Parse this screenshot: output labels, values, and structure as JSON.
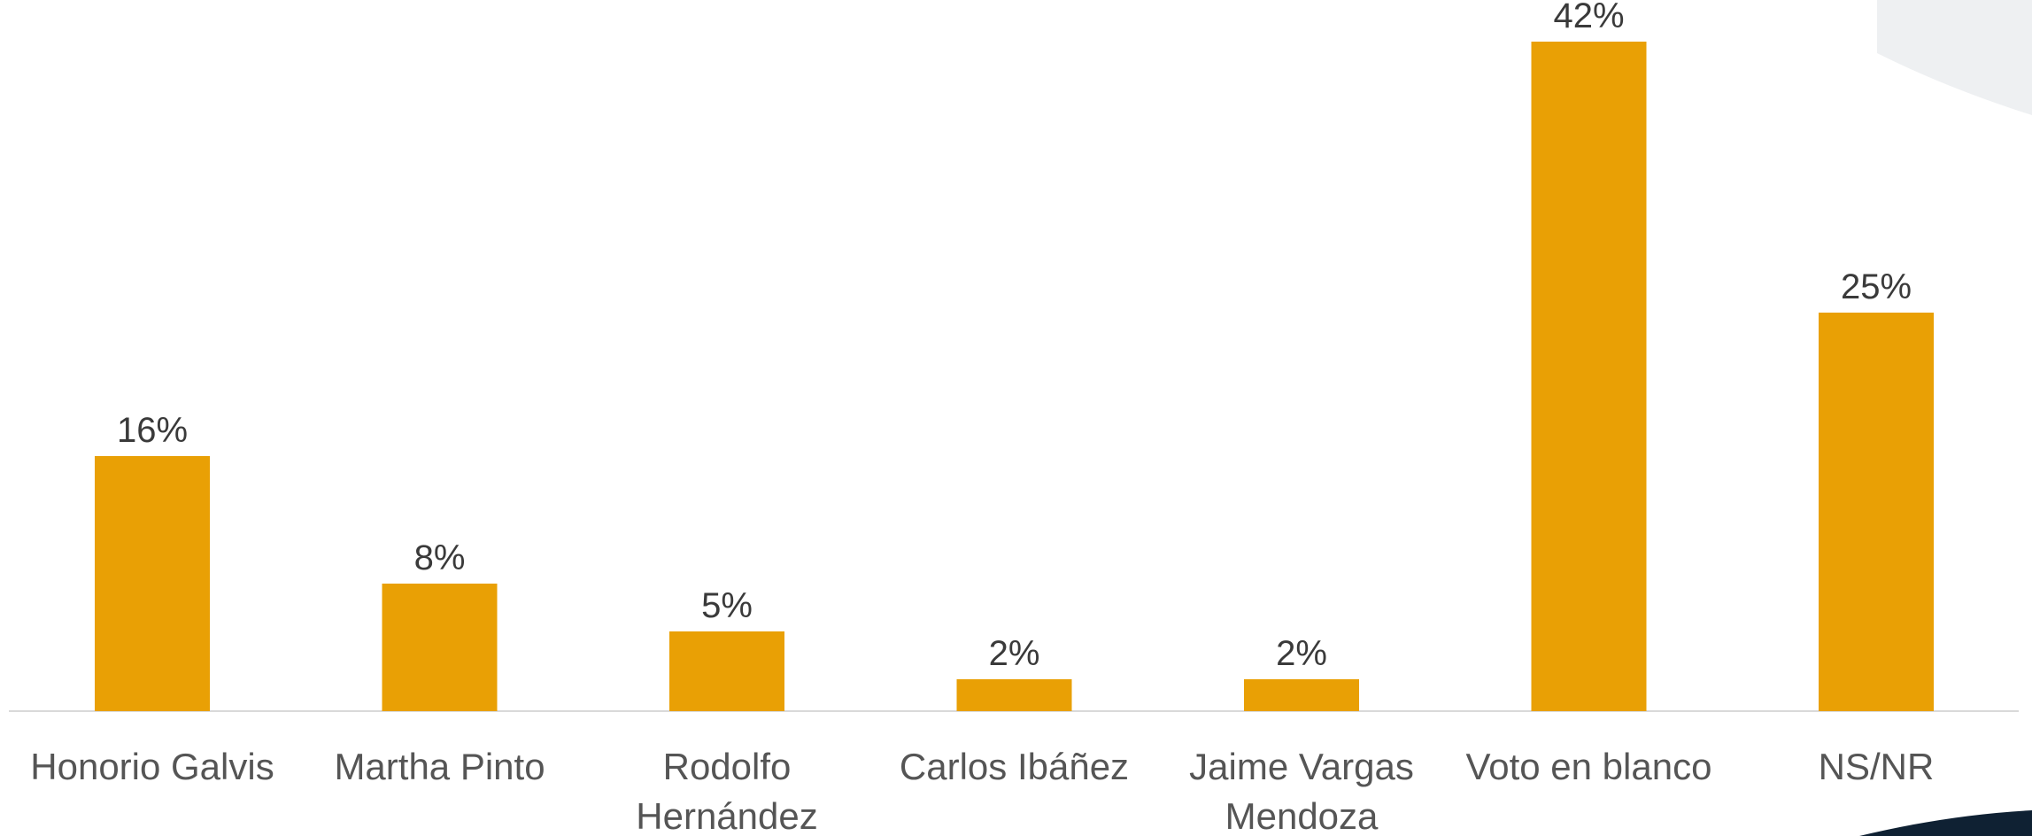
{
  "chart_data": {
    "type": "bar",
    "categories": [
      [
        "Honorio Galvis"
      ],
      [
        "Martha Pinto"
      ],
      [
        "Rodolfo",
        "Hernández"
      ],
      [
        "Carlos Ibáñez"
      ],
      [
        "Jaime Vargas",
        "Mendoza"
      ],
      [
        "Voto en blanco"
      ],
      [
        "NS/NR"
      ]
    ],
    "values": [
      16,
      8,
      5,
      2,
      2,
      42,
      25
    ],
    "data_labels": [
      "16%",
      "8%",
      "5%",
      "2%",
      "2%",
      "42%",
      "25%"
    ],
    "unit": "%",
    "title": "",
    "xlabel": "",
    "ylabel": "",
    "ylim": [
      0,
      45
    ],
    "grid": false,
    "legend": "none",
    "bar_color": "#E9A005",
    "axis_color": "#d9d9d9",
    "label_color": "#3a3a3a"
  },
  "decoration": {
    "corner_accent_color": "#0f2133",
    "corner_shade_color": "#eef0f2"
  }
}
